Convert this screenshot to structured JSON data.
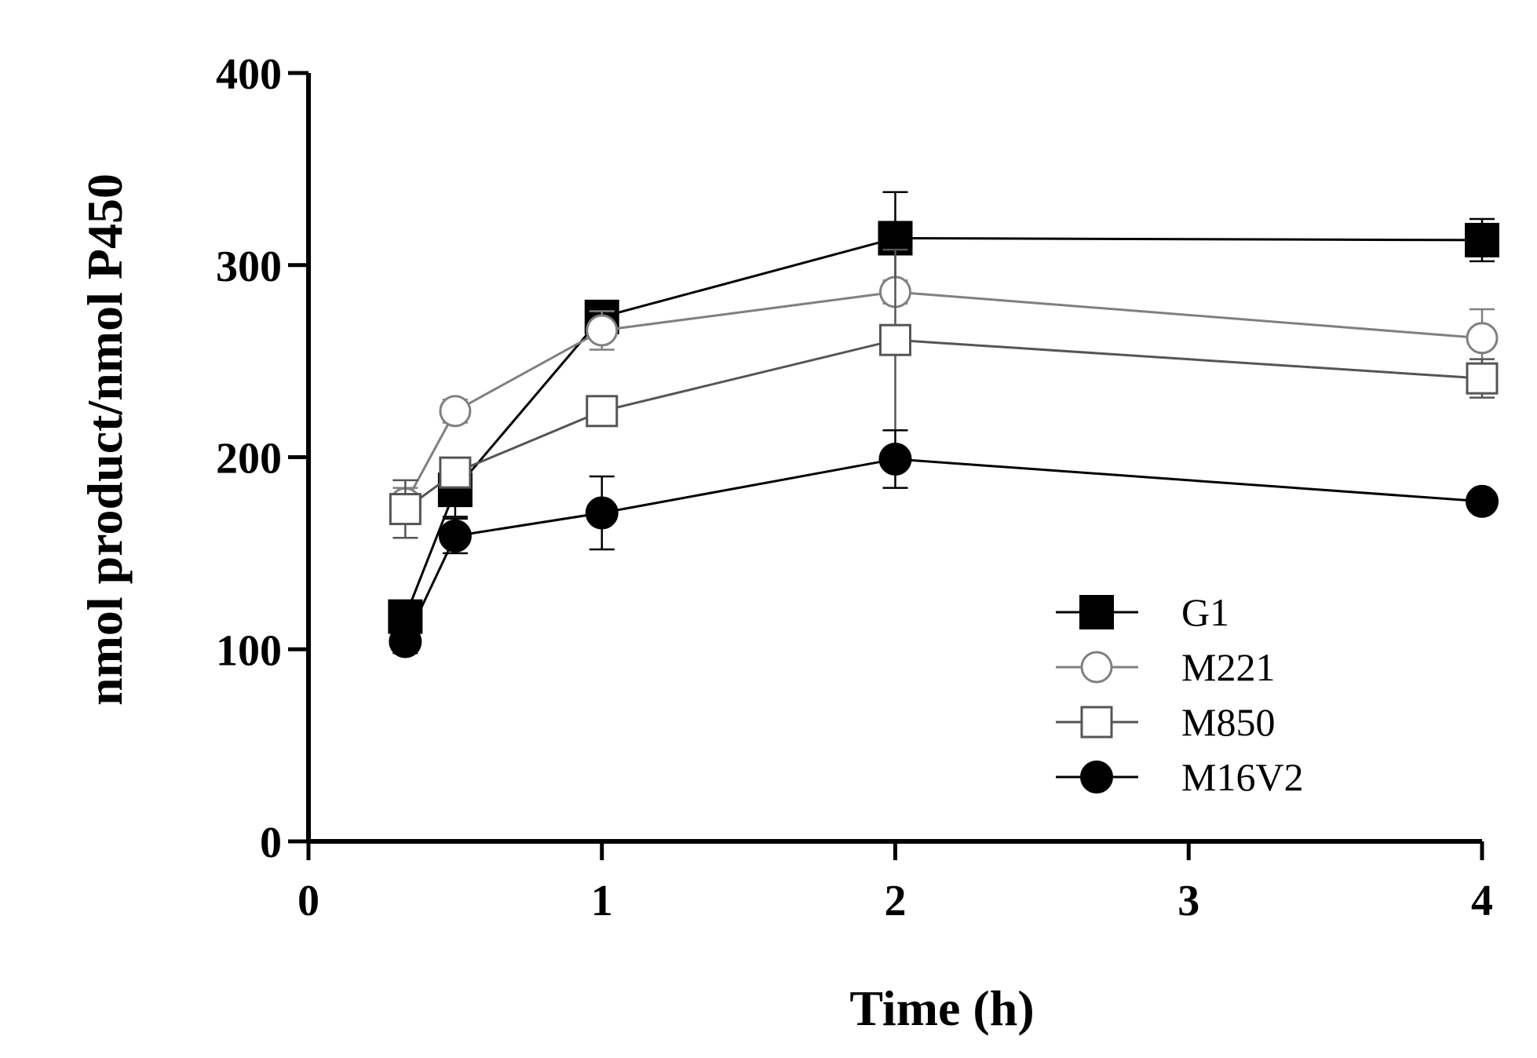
{
  "chart_data": {
    "type": "line",
    "title": "",
    "xlabel": "Time (h)",
    "ylabel": "nmol product/nmol P450",
    "xlim": [
      0,
      4
    ],
    "ylim": [
      0,
      400
    ],
    "x_display": [
      0,
      1,
      2,
      3,
      4
    ],
    "x_tick_labels": [
      "0",
      "1",
      "2",
      "3",
      "4"
    ],
    "y_ticks": [
      0,
      100,
      200,
      300,
      400
    ],
    "y_tick_labels": [
      "0",
      "100",
      "200",
      "300",
      "400"
    ],
    "x": [
      0.33,
      0.5,
      1,
      2,
      4
    ],
    "legend_position": "bottom-right",
    "series": [
      {
        "name": "G1",
        "marker": "square-filled",
        "color": "#000000",
        "values": [
          117,
          183,
          273,
          314,
          313
        ],
        "errors": [
          8,
          14,
          4,
          24,
          11
        ]
      },
      {
        "name": "M221",
        "marker": "circle-open",
        "color": "#808080",
        "values": [
          176,
          224,
          266,
          286,
          262
        ],
        "errors": [
          8,
          6,
          10,
          6,
          15
        ]
      },
      {
        "name": "M850",
        "marker": "square-open",
        "color": "#555555",
        "values": [
          173,
          192,
          224,
          261,
          241
        ],
        "errors": [
          15,
          6,
          4,
          47,
          10
        ]
      },
      {
        "name": "M16V2",
        "marker": "circle-filled",
        "color": "#000000",
        "values": [
          104,
          159,
          171,
          199,
          177
        ],
        "errors": [
          6,
          9,
          19,
          15,
          2
        ]
      }
    ]
  }
}
